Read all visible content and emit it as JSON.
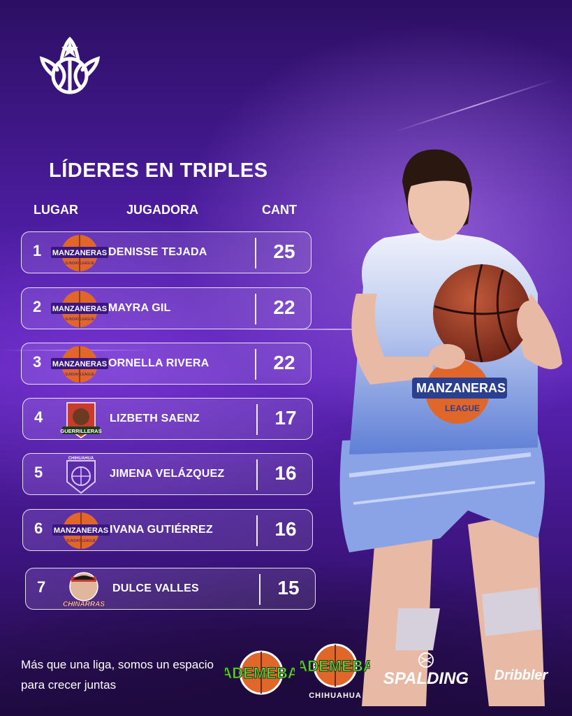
{
  "title": "LÍDERES EN TRIPLES",
  "columns": {
    "place": "LUGAR",
    "player": "JUGADORA",
    "count": "CANT"
  },
  "rows": [
    {
      "rank": "1",
      "team": "MANZANERAS",
      "team_sub": "SUNDAY LEAGUE",
      "name": "DENISSE TEJADA",
      "count": "25"
    },
    {
      "rank": "2",
      "team": "MANZANERAS",
      "team_sub": "SUNDAY LEAGUE",
      "name": "MAYRA GIL",
      "count": "22"
    },
    {
      "rank": "3",
      "team": "MANZANERAS",
      "team_sub": "SUNDAY LEAGUE",
      "name": "ORNELLA RIVERA",
      "count": "22"
    },
    {
      "rank": "4",
      "team": "GUERRILLERAS",
      "team_sub": "",
      "name": "LIZBETH SAENZ",
      "count": "17"
    },
    {
      "rank": "5",
      "team": "CHIHUAHUA",
      "team_sub": "",
      "name": "JIMENA VELÁZQUEZ",
      "count": "16"
    },
    {
      "rank": "6",
      "team": "MANZANERAS",
      "team_sub": "SUNDAY LEAGUE",
      "name": "IVANA GUTIÉRREZ",
      "count": "16"
    },
    {
      "rank": "7",
      "team": "CHINARRAS",
      "team_sub": "",
      "name": "DULCE VALLES",
      "count": "15"
    }
  ],
  "jersey": {
    "team": "MANZANERAS",
    "sub": "LEAGUE"
  },
  "tagline": "Más que una liga, somos un espacio para crecer juntas",
  "sponsors": {
    "ademeba": "ADEMEBA",
    "ademeba_chihuahua": "ADEMEBA",
    "ademeba_city": "CHIHUAHUA",
    "spalding": "SPALDING",
    "dribbler": "Dribbler"
  },
  "colors": {
    "accent": "#5a23b6",
    "ball": "#e0662a",
    "band": "#3a1780"
  }
}
